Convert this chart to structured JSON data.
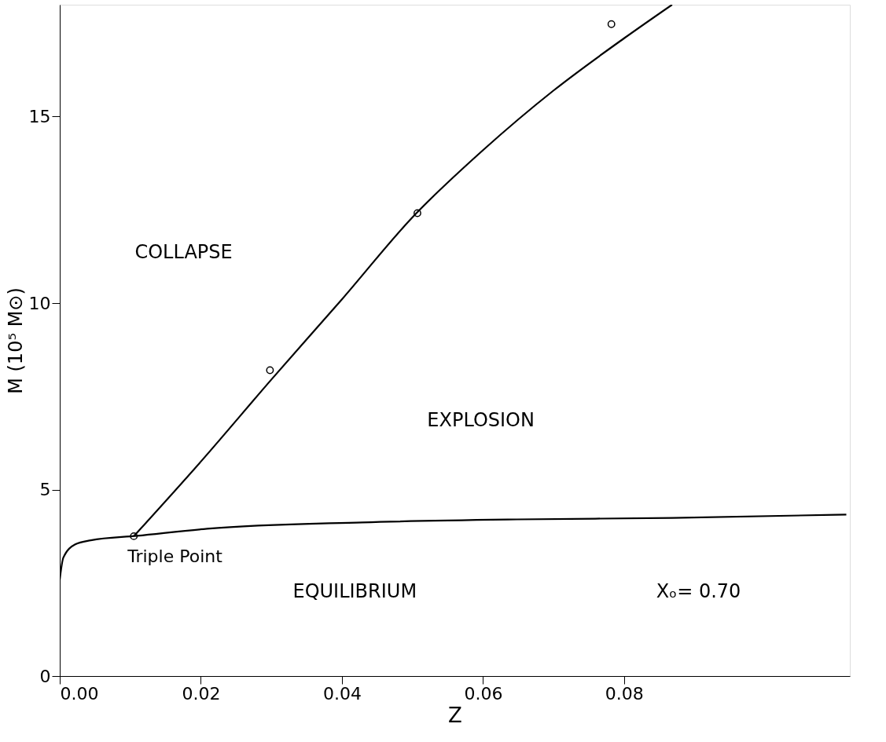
{
  "chart_data": {
    "type": "line",
    "xlabel": "Z",
    "ylabel": "M (10⁵ M⊙)",
    "xlim": [
      0,
      0.112
    ],
    "ylim": [
      0,
      18
    ],
    "xticks": [
      {
        "value": 0,
        "label": "0.00"
      },
      {
        "value": 0.02,
        "label": "0.02"
      },
      {
        "value": 0.04,
        "label": "0.04"
      },
      {
        "value": 0.06,
        "label": "0.06"
      },
      {
        "value": 0.08,
        "label": "0.08"
      }
    ],
    "yticks": [
      0,
      5,
      10,
      15
    ],
    "grid": false,
    "series": [
      {
        "color": "#000000",
        "line_style": "solid",
        "marker": "none",
        "x": [
          0.0105,
          0.02,
          0.03,
          0.04,
          0.05,
          0.06,
          0.07,
          0.08,
          0.0868
        ],
        "values": [
          3.75,
          5.75,
          7.95,
          10.1,
          12.3,
          14.1,
          15.7,
          17.1,
          18.0
        ]
      },
      {
        "color": "#000000",
        "line_style": "solid",
        "marker": "none",
        "x": [
          0.0,
          0.0005,
          0.0022,
          0.0044,
          0.011,
          0.0209,
          0.0429,
          0.0648,
          0.0868,
          0.1115
        ],
        "values": [
          2.58,
          3.17,
          3.53,
          3.64,
          3.76,
          3.95,
          4.12,
          4.2,
          4.24,
          4.33
        ]
      },
      {
        "type": "scatter",
        "color": "#000000",
        "marker": "circle",
        "x": [
          0.0298,
          0.0507,
          0.0782
        ],
        "values": [
          8.2,
          12.41,
          17.48
        ]
      },
      {
        "type": "scatter",
        "color": "#000000",
        "marker": "circle",
        "x": [
          0.0105
        ],
        "values": [
          3.75
        ]
      }
    ],
    "annotations": [
      "COLLAPSE",
      "EXPLOSION",
      "EQUILIBRIUM",
      {
        "text": "Triple Point",
        "x": 0.0105,
        "y": 3.75
      },
      "Xₒ= 0.70"
    ]
  }
}
